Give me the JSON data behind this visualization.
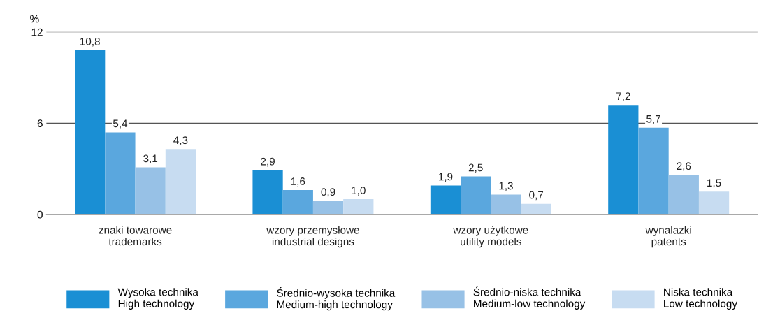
{
  "chart_data": {
    "type": "bar",
    "ylabel": "%",
    "categories": [
      "znaki towarowe\ntrademarks",
      "wzory przemysłowe\nindustrial designs",
      "wzory użytkowe\nutility models",
      "wynalazki\npatents"
    ],
    "series": [
      {
        "name": "Wysoka technika\nHigh technology",
        "color": "#1a8fd4",
        "values": [
          10.8,
          2.9,
          1.9,
          7.2
        ],
        "value_labels": [
          "10,8",
          "2,9",
          "1,9",
          "7,2"
        ]
      },
      {
        "name": "Średnio-wysoka technika\nMedium-high technology",
        "color": "#5aa7de",
        "values": [
          5.4,
          1.6,
          2.5,
          5.7
        ],
        "value_labels": [
          "5,4",
          "1,6",
          "2,5",
          "5,7"
        ]
      },
      {
        "name": "Średnio-niska technika\nMedium-low technology",
        "color": "#97c1e6",
        "values": [
          3.1,
          0.9,
          1.3,
          2.6
        ],
        "value_labels": [
          "3,1",
          "0,9",
          "1,3",
          "2,6"
        ]
      },
      {
        "name": "Niska technika\nLow technology",
        "color": "#c7dcf1",
        "values": [
          4.3,
          1.0,
          0.7,
          1.5
        ],
        "value_labels": [
          "4,3",
          "1,0",
          "0,7",
          "1,5"
        ]
      }
    ],
    "ylim": [
      0,
      12
    ],
    "yticks": [
      0,
      6,
      12
    ],
    "grid": "y",
    "legend": "bottom"
  }
}
